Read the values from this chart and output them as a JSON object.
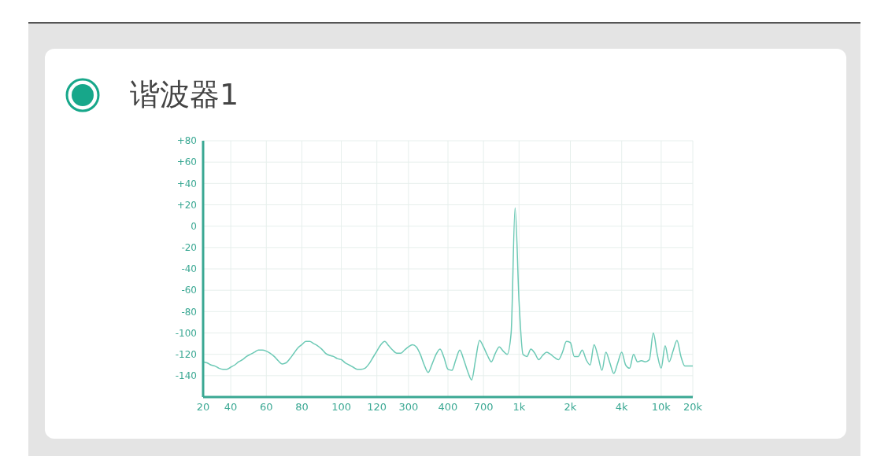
{
  "chart_data": {
    "type": "line",
    "title": "谐波器1",
    "categories": [
      "20",
      null,
      null,
      null,
      null,
      null,
      null,
      "40",
      null,
      null,
      null,
      null,
      null,
      null,
      null,
      null,
      "60",
      null,
      null,
      null,
      null,
      null,
      null,
      null,
      null,
      "80",
      null,
      null,
      null,
      null,
      null,
      null,
      null,
      null,
      null,
      "100",
      null,
      null,
      null,
      null,
      null,
      null,
      null,
      null,
      "120",
      null,
      null,
      null,
      null,
      null,
      null,
      null,
      "300",
      null,
      null,
      null,
      null,
      null,
      null,
      null,
      null,
      null,
      "400",
      null,
      null,
      null,
      null,
      null,
      null,
      null,
      null,
      "700",
      null,
      null,
      null,
      null,
      null,
      null,
      null,
      null,
      "1k",
      null,
      null,
      null,
      null,
      null,
      null,
      null,
      null,
      null,
      null,
      null,
      null,
      "2k",
      null,
      null,
      null,
      null,
      null,
      null,
      null,
      null,
      null,
      null,
      null,
      null,
      "4k",
      null,
      null,
      null,
      null,
      null,
      null,
      null,
      null,
      null,
      "10k",
      null,
      null,
      null,
      null,
      null,
      null,
      null,
      "20k"
    ],
    "series": [
      {
        "color": "#6cc9b5",
        "values": [
          -127,
          -128,
          -130,
          -131,
          -133,
          -134,
          -134,
          -132,
          -130,
          -127,
          -125,
          -122,
          -120,
          -118,
          -116,
          -116,
          -117,
          -119,
          -122,
          -126,
          -129,
          -128,
          -124,
          -119,
          -114,
          -111,
          -108,
          -108,
          -110,
          -112,
          -115,
          -119,
          -121,
          -122,
          -124,
          -125,
          -128,
          -130,
          -132,
          -134,
          -134,
          -133,
          -129,
          -123,
          -117,
          -111,
          -108,
          -112,
          -116,
          -119,
          -119,
          -116,
          -113,
          -111,
          -113,
          -120,
          -130,
          -137,
          -129,
          -120,
          -115,
          -123,
          -134,
          -135,
          -125,
          -116,
          -125,
          -136,
          -144,
          -125,
          -107,
          -113,
          -121,
          -127,
          -119,
          -113,
          -117,
          -120,
          -100,
          17,
          -70,
          -120,
          -122,
          -115,
          -119,
          -125,
          -121,
          -118,
          -120,
          -123,
          -125,
          -118,
          -108,
          -109,
          -122,
          -122,
          -116,
          -125,
          -130,
          -111,
          -122,
          -135,
          -118,
          -128,
          -138,
          -128,
          -118,
          -130,
          -133,
          -120,
          -127,
          -126,
          -127,
          -125,
          -100,
          -120,
          -133,
          -112,
          -127,
          -117,
          -107,
          -122,
          -131,
          -131,
          -131
        ]
      }
    ],
    "ylim": [
      -160,
      80
    ],
    "yticks": [
      {
        "value": 80,
        "label": "+80"
      },
      {
        "value": 60,
        "label": "+60"
      },
      {
        "value": 40,
        "label": "+40"
      },
      {
        "value": 20,
        "label": "+20"
      },
      0,
      -20,
      -40,
      -60,
      -80,
      -100,
      -120,
      -140
    ],
    "grid": true,
    "legend": false,
    "marker": "none",
    "line_style": "solid"
  }
}
